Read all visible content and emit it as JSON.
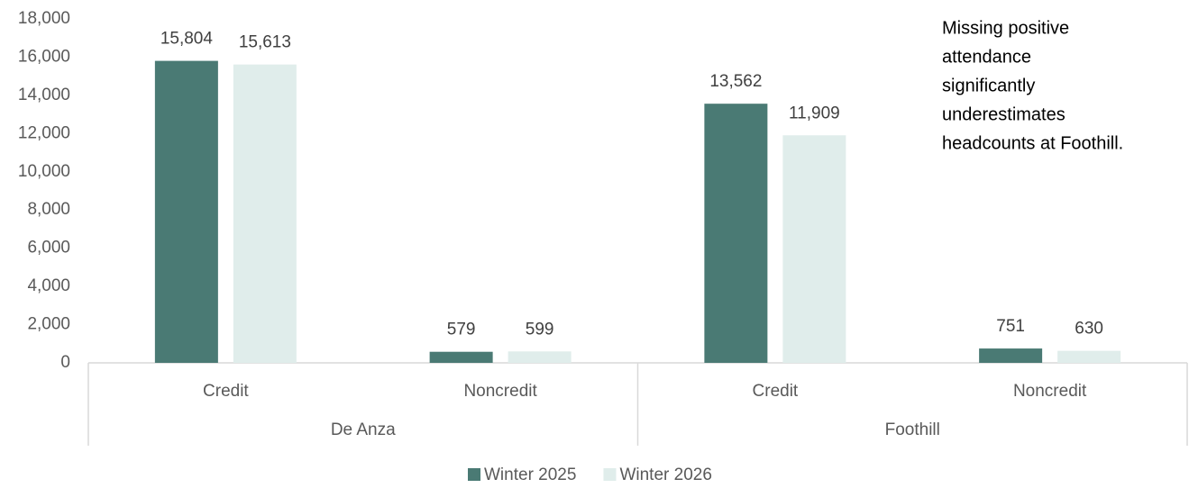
{
  "chart_data": {
    "type": "bar",
    "categories": [
      "Credit",
      "Noncredit",
      "Credit",
      "Noncredit"
    ],
    "category_groups": [
      "De Anza",
      "Foothill"
    ],
    "series": [
      {
        "name": "Winter 2025",
        "color": "#4a7a74",
        "values": [
          15804,
          579,
          13562,
          751
        ],
        "value_labels": [
          "15,804",
          "579",
          "13,562",
          "751"
        ]
      },
      {
        "name": "Winter 2026",
        "color": "#e0edeb",
        "values": [
          15613,
          599,
          11909,
          630
        ],
        "value_labels": [
          "15,613",
          "599",
          "11,909",
          "630"
        ]
      }
    ],
    "ylim": [
      0,
      18000
    ],
    "yticks": [
      0,
      {
        "value": 2000,
        "label": "2,000"
      },
      {
        "value": 4000,
        "label": "4,000"
      },
      {
        "value": 6000,
        "label": "6,000"
      },
      {
        "value": 8000,
        "label": "8,000"
      },
      {
        "value": 10000,
        "label": "10,000"
      },
      {
        "value": 12000,
        "label": "12,000"
      },
      {
        "value": 14000,
        "label": "14,000"
      },
      {
        "value": 16000,
        "label": "16,000"
      },
      {
        "value": 18000,
        "label": "18,000"
      }
    ],
    "annotation": [
      "Missing positive",
      "attendance",
      "significantly",
      "underestimates",
      "headcounts at Foothill."
    ],
    "grid": false,
    "legend": "bottom"
  }
}
